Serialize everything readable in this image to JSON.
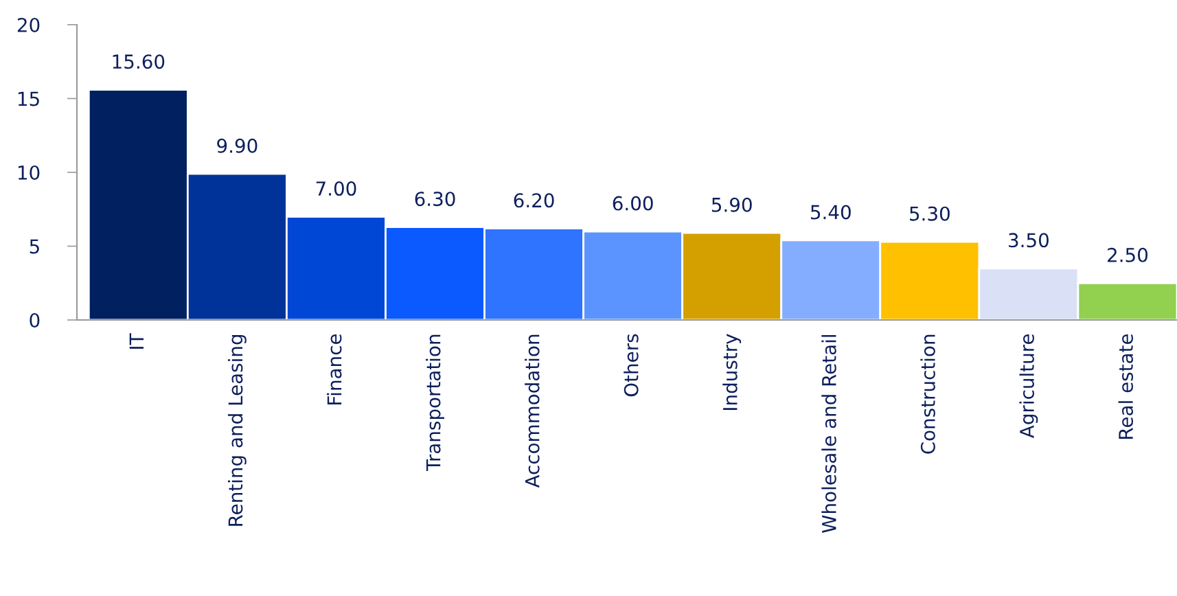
{
  "chart_data": {
    "type": "bar",
    "categories": [
      "IT",
      "Renting and Leasing",
      "Finance",
      "Transportation",
      "Accommodation",
      "Others",
      "Industry",
      "Wholesale and Retail",
      "Construction",
      "Agriculture",
      "Real estate"
    ],
    "values": [
      15.6,
      9.9,
      7.0,
      6.3,
      6.2,
      6.0,
      5.9,
      5.4,
      5.3,
      3.5,
      2.5
    ],
    "value_labels": [
      "15.60",
      "9.90",
      "7.00",
      "6.30",
      "6.20",
      "6.00",
      "5.90",
      "5.40",
      "5.30",
      "3.50",
      "2.50"
    ],
    "colors": [
      "#002060",
      "#003399",
      "#0047d6",
      "#0a5aff",
      "#2e74ff",
      "#5c94ff",
      "#d4a000",
      "#85adff",
      "#ffc000",
      "#dae0f5",
      "#92d050"
    ],
    "ylim": [
      0,
      20
    ],
    "yticks": [
      0,
      5,
      10,
      15,
      20
    ],
    "grid": false,
    "legend": false
  }
}
